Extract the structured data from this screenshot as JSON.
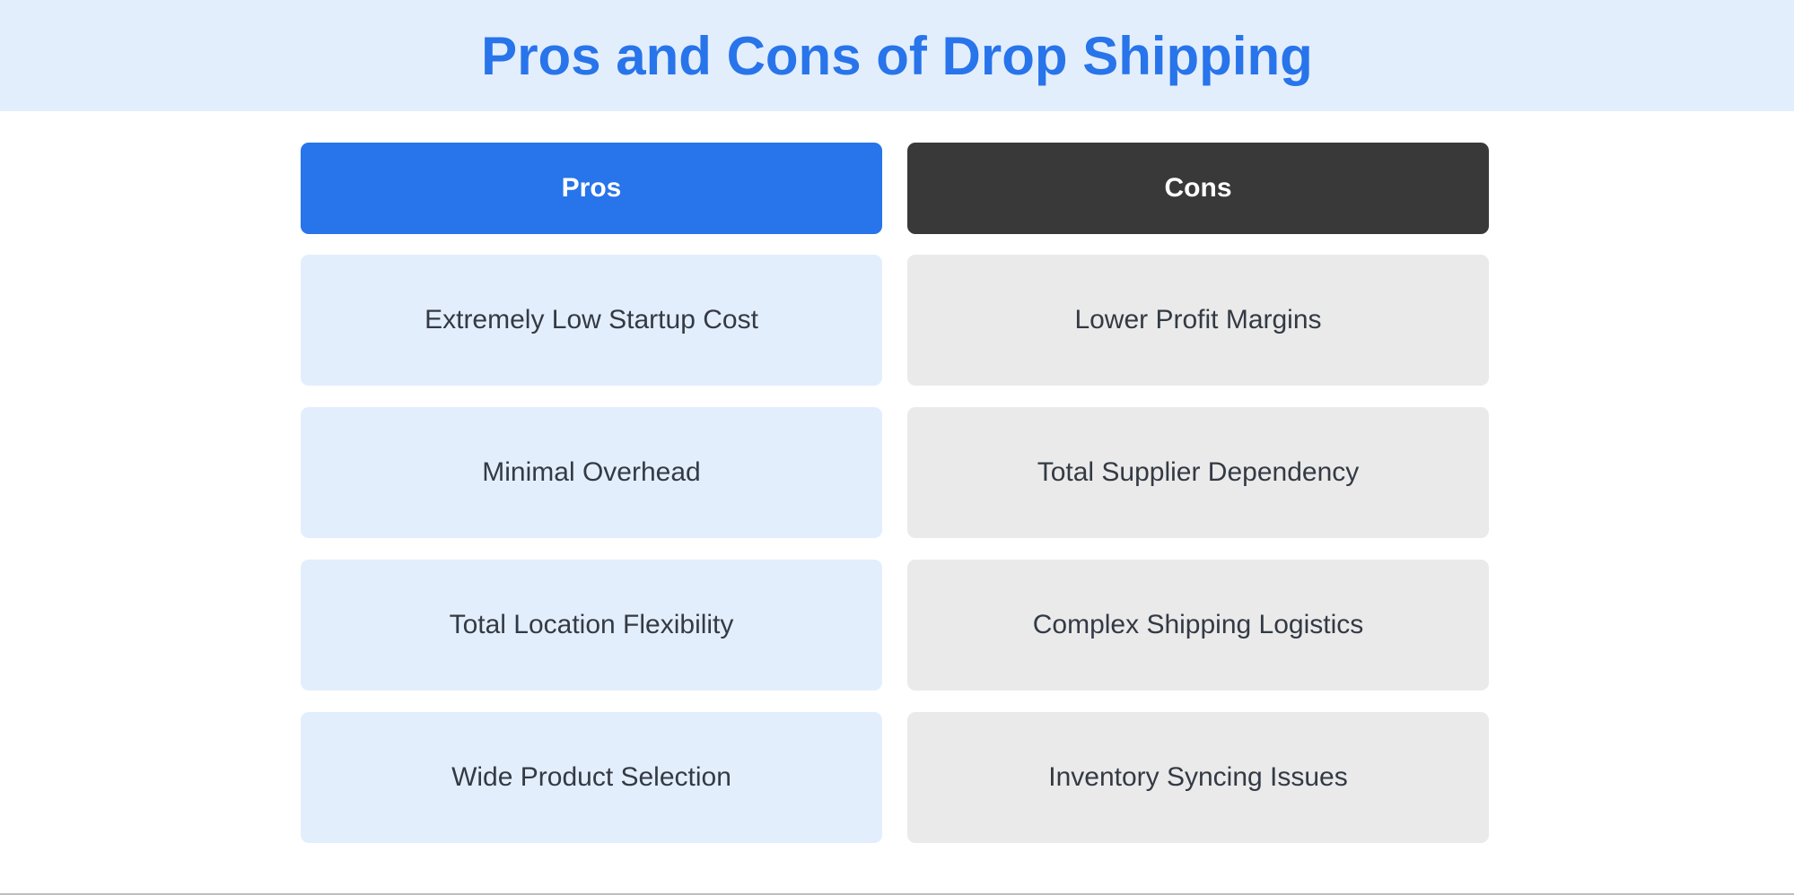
{
  "title": "Pros and Cons of Drop Shipping",
  "pros": {
    "label": "Pros",
    "items": [
      "Extremely Low Startup Cost",
      "Minimal Overhead",
      "Total Location Flexibility",
      "Wide Product Selection"
    ]
  },
  "cons": {
    "label": "Cons",
    "items": [
      "Lower Profit Margins",
      "Total Supplier Dependency",
      "Complex Shipping Logistics",
      "Inventory Syncing Issues"
    ]
  },
  "colors": {
    "accent": "#2874ea",
    "cons_header": "#393939",
    "pro_cell": "#e3eefd",
    "con_cell": "#eaeaea",
    "banner": "#e3eefd"
  }
}
